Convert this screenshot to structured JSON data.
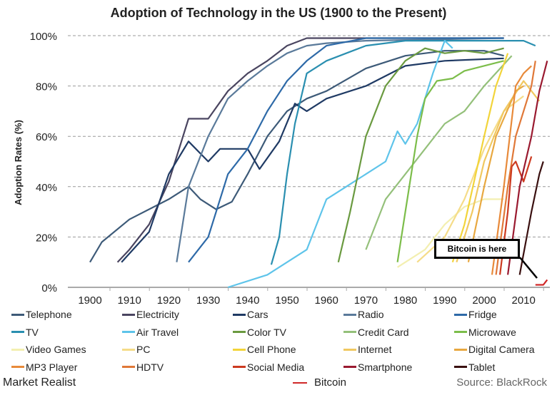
{
  "chart_data": {
    "type": "line",
    "title": "Adoption of Technology in the US (1900 to the Present)",
    "ylabel": "Adoption Rates (%)",
    "xlabel": "",
    "xlim": [
      1894,
      2017
    ],
    "ylim": [
      0,
      100
    ],
    "xticks": [
      "1900",
      "1910",
      "1920",
      "1930",
      "1940",
      "1950",
      "1960",
      "1970",
      "1980",
      "1990",
      "2000",
      "2010"
    ],
    "yticks": [
      "0%",
      "20%",
      "40%",
      "60%",
      "80%",
      "100%"
    ],
    "grid": "horizontal dashed",
    "legend": "bottom",
    "annotation": "Bitcoin is here",
    "series": [
      {
        "name": "Telephone",
        "color": "#3d5a78",
        "points": [
          [
            1900,
            10
          ],
          [
            1903,
            18
          ],
          [
            1910,
            27
          ],
          [
            1920,
            35
          ],
          [
            1925,
            40
          ],
          [
            1928,
            35
          ],
          [
            1932,
            31
          ],
          [
            1936,
            34
          ],
          [
            1940,
            45
          ],
          [
            1945,
            60
          ],
          [
            1950,
            70
          ],
          [
            1955,
            75
          ],
          [
            1960,
            78
          ],
          [
            1970,
            87
          ],
          [
            1980,
            92
          ],
          [
            1990,
            94
          ],
          [
            2000,
            94
          ],
          [
            2005,
            92
          ]
        ]
      },
      {
        "name": "Electricity",
        "color": "#4a4560",
        "points": [
          [
            1907,
            10
          ],
          [
            1910,
            15
          ],
          [
            1915,
            25
          ],
          [
            1920,
            42
          ],
          [
            1925,
            67
          ],
          [
            1930,
            67
          ],
          [
            1935,
            78
          ],
          [
            1940,
            85
          ],
          [
            1945,
            90
          ],
          [
            1950,
            96
          ],
          [
            1955,
            99
          ],
          [
            2005,
            99
          ]
        ]
      },
      {
        "name": "Cars",
        "color": "#1f3a64",
        "points": [
          [
            1908,
            10
          ],
          [
            1915,
            22
          ],
          [
            1920,
            45
          ],
          [
            1925,
            58
          ],
          [
            1930,
            50
          ],
          [
            1933,
            55
          ],
          [
            1940,
            55
          ],
          [
            1943,
            47
          ],
          [
            1948,
            58
          ],
          [
            1952,
            73
          ],
          [
            1955,
            70
          ],
          [
            1960,
            75
          ],
          [
            1970,
            80
          ],
          [
            1980,
            88
          ],
          [
            1990,
            90
          ],
          [
            2005,
            91
          ]
        ]
      },
      {
        "name": "Radio",
        "color": "#5a7a9a",
        "points": [
          [
            1922,
            10
          ],
          [
            1925,
            40
          ],
          [
            1930,
            60
          ],
          [
            1935,
            75
          ],
          [
            1940,
            82
          ],
          [
            1945,
            88
          ],
          [
            1950,
            93
          ],
          [
            1955,
            96
          ],
          [
            1960,
            97
          ],
          [
            1970,
            98
          ],
          [
            2005,
            99
          ]
        ]
      },
      {
        "name": "Fridge",
        "color": "#2e6aa8",
        "points": [
          [
            1925,
            10
          ],
          [
            1930,
            20
          ],
          [
            1935,
            45
          ],
          [
            1940,
            55
          ],
          [
            1945,
            70
          ],
          [
            1950,
            82
          ],
          [
            1955,
            90
          ],
          [
            1960,
            96
          ],
          [
            1970,
            99
          ],
          [
            2005,
            99
          ]
        ]
      },
      {
        "name": "TV",
        "color": "#2a8fb0",
        "points": [
          [
            1946,
            9
          ],
          [
            1948,
            20
          ],
          [
            1950,
            45
          ],
          [
            1952,
            65
          ],
          [
            1955,
            85
          ],
          [
            1960,
            90
          ],
          [
            1965,
            93
          ],
          [
            1970,
            96
          ],
          [
            1980,
            98
          ],
          [
            2010,
            98
          ],
          [
            2013,
            96
          ]
        ]
      },
      {
        "name": "Air Travel",
        "color": "#5ec4ea",
        "points": [
          [
            1935,
            0
          ],
          [
            1945,
            5
          ],
          [
            1955,
            15
          ],
          [
            1960,
            35
          ],
          [
            1965,
            40
          ],
          [
            1970,
            45
          ],
          [
            1975,
            50
          ],
          [
            1978,
            62
          ],
          [
            1980,
            57
          ],
          [
            1983,
            65
          ],
          [
            1987,
            85
          ],
          [
            1990,
            98
          ],
          [
            1992,
            95
          ]
        ]
      },
      {
        "name": "Color TV",
        "color": "#6a9a40",
        "points": [
          [
            1963,
            10
          ],
          [
            1966,
            30
          ],
          [
            1970,
            60
          ],
          [
            1975,
            80
          ],
          [
            1980,
            90
          ],
          [
            1985,
            95
          ],
          [
            1990,
            93
          ],
          [
            1995,
            94
          ],
          [
            2000,
            93
          ],
          [
            2005,
            95
          ]
        ]
      },
      {
        "name": "Credit Card",
        "color": "#94c07a",
        "points": [
          [
            1970,
            15
          ],
          [
            1975,
            35
          ],
          [
            1980,
            45
          ],
          [
            1985,
            55
          ],
          [
            1990,
            65
          ],
          [
            1995,
            70
          ],
          [
            2000,
            80
          ],
          [
            2007,
            92
          ]
        ]
      },
      {
        "name": "Microwave",
        "color": "#7cbd4a",
        "points": [
          [
            1978,
            10
          ],
          [
            1980,
            30
          ],
          [
            1983,
            60
          ],
          [
            1985,
            75
          ],
          [
            1988,
            82
          ],
          [
            1992,
            83
          ],
          [
            1995,
            86
          ],
          [
            2005,
            90
          ]
        ]
      },
      {
        "name": "Video Games",
        "color": "#f3efb0",
        "points": [
          [
            1978,
            8
          ],
          [
            1985,
            15
          ],
          [
            1990,
            25
          ],
          [
            1995,
            32
          ],
          [
            2000,
            35
          ],
          [
            2005,
            35
          ]
        ]
      },
      {
        "name": "PC",
        "color": "#f5dc88",
        "points": [
          [
            1983,
            10
          ],
          [
            1990,
            20
          ],
          [
            1995,
            35
          ],
          [
            2000,
            55
          ],
          [
            2005,
            70
          ],
          [
            2010,
            76
          ]
        ]
      },
      {
        "name": "Cell Phone",
        "color": "#f2d43a",
        "points": [
          [
            1992,
            10
          ],
          [
            1995,
            25
          ],
          [
            2000,
            60
          ],
          [
            2003,
            80
          ],
          [
            2006,
            93
          ]
        ]
      },
      {
        "name": "Internet",
        "color": "#f0c860",
        "points": [
          [
            1993,
            10
          ],
          [
            1997,
            30
          ],
          [
            2000,
            50
          ],
          [
            2005,
            70
          ],
          [
            2010,
            82
          ],
          [
            2014,
            74
          ]
        ]
      },
      {
        "name": "Digital Camera",
        "color": "#e8a840",
        "points": [
          [
            1996,
            10
          ],
          [
            2000,
            40
          ],
          [
            2003,
            60
          ],
          [
            2008,
            78
          ],
          [
            2010,
            80
          ]
        ]
      },
      {
        "name": "MP3 Player",
        "color": "#e88a3a",
        "points": [
          [
            2002,
            5
          ],
          [
            2005,
            40
          ],
          [
            2008,
            80
          ],
          [
            2010,
            85
          ],
          [
            2012,
            88
          ]
        ]
      },
      {
        "name": "HDTV",
        "color": "#e07838",
        "points": [
          [
            2003,
            5
          ],
          [
            2006,
            40
          ],
          [
            2008,
            60
          ],
          [
            2010,
            70
          ],
          [
            2012,
            80
          ],
          [
            2013,
            90
          ]
        ]
      },
      {
        "name": "Social Media",
        "color": "#cc3a20",
        "points": [
          [
            2004,
            5
          ],
          [
            2006,
            30
          ],
          [
            2007,
            48
          ],
          [
            2008,
            50
          ],
          [
            2010,
            42
          ],
          [
            2012,
            52
          ]
        ]
      },
      {
        "name": "Smartphone",
        "color": "#9a1a30",
        "points": [
          [
            2006,
            5
          ],
          [
            2009,
            40
          ],
          [
            2012,
            60
          ],
          [
            2014,
            78
          ],
          [
            2016,
            90
          ]
        ]
      },
      {
        "name": "Tablet",
        "color": "#3a1010",
        "points": [
          [
            2009,
            5
          ],
          [
            2012,
            30
          ],
          [
            2014,
            45
          ],
          [
            2015,
            50
          ]
        ]
      },
      {
        "name": "Bitcoin",
        "color": "#d02828",
        "points": [
          [
            2013,
            1
          ],
          [
            2015,
            1
          ],
          [
            2016,
            3
          ]
        ]
      }
    ]
  },
  "footer": {
    "logo": "Market Realist",
    "source": "Source: BlackRock"
  }
}
